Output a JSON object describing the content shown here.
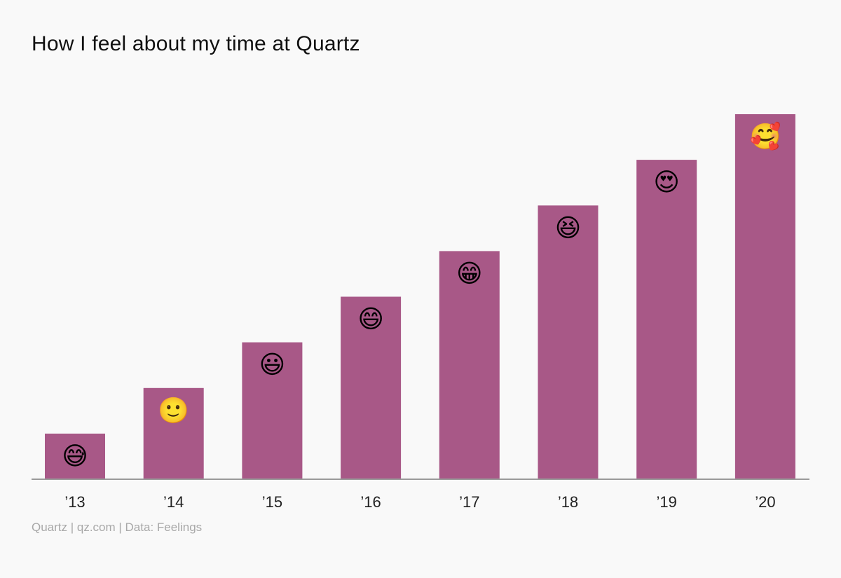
{
  "chart_data": {
    "type": "bar",
    "title": "How I feel about my time at Quartz",
    "source": "Quartz | qz.com | Data: Feelings",
    "categories": [
      "’13",
      "’14",
      "’15",
      "’16",
      "’17",
      "’18",
      "’19",
      "’20"
    ],
    "values": [
      1,
      2,
      3,
      4,
      5,
      6,
      7,
      8
    ],
    "data_labels": [
      "😅",
      "🙂",
      "😃",
      "😄",
      "😁",
      "😆",
      "😍",
      "🥰"
    ],
    "ylim": [
      0,
      8
    ],
    "xlabel": "",
    "ylabel": "",
    "grid": false,
    "colors": {
      "bar": "#a85887",
      "baseline": "#9a9a9a",
      "background": "#f9f9f9"
    }
  }
}
